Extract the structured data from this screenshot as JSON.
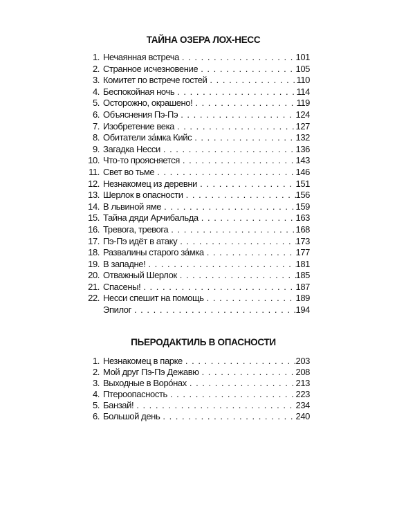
{
  "sections": [
    {
      "title": "ТАЙНА ОЗЕРА ЛОХ-НЕСС",
      "entries": [
        {
          "num": "1.",
          "title": "Нечаянная встреча",
          "page": "101"
        },
        {
          "num": "2.",
          "title": "Странное исчезновение",
          "page": "105"
        },
        {
          "num": "3.",
          "title": "Комитет по встрече гостей",
          "page": "110"
        },
        {
          "num": "4.",
          "title": "Беспокойная ночь",
          "page": "114"
        },
        {
          "num": "5.",
          "title": "Осторожно, окрашено!",
          "page": "119"
        },
        {
          "num": "6.",
          "title": "Объяснения Пэ-Пэ",
          "page": "124"
        },
        {
          "num": "7.",
          "title": "Изобретение века",
          "page": "127"
        },
        {
          "num": "8.",
          "title": "Обитатели за́мка Кийс",
          "page": "132"
        },
        {
          "num": "9.",
          "title": "Загадка Несси",
          "page": "136"
        },
        {
          "num": "10.",
          "title": "Что-то проясняется",
          "page": "143"
        },
        {
          "num": "11.",
          "title": "Свет во тьме",
          "page": "146"
        },
        {
          "num": "12.",
          "title": "Незнакомец из деревни",
          "page": "151"
        },
        {
          "num": "13.",
          "title": "Шерлок в опасности",
          "page": "156"
        },
        {
          "num": "14.",
          "title": "В львиной яме",
          "page": "159"
        },
        {
          "num": "15.",
          "title": "Тайна дяди Арчибальда",
          "page": "163"
        },
        {
          "num": "16.",
          "title": "Тревога, тревога",
          "page": "168"
        },
        {
          "num": "17.",
          "title": "Пэ-Пэ идёт в атаку",
          "page": "173"
        },
        {
          "num": "18.",
          "title": "Развалины старого за́мка",
          "page": "177"
        },
        {
          "num": "19.",
          "title": "В западне!",
          "page": "181"
        },
        {
          "num": "20.",
          "title": "Отважный Шерлок",
          "page": "185"
        },
        {
          "num": "21.",
          "title": "Спасены!",
          "page": "187"
        },
        {
          "num": "22.",
          "title": "Несси спешит на помощь",
          "page": "189"
        },
        {
          "num": "",
          "title": "Эпилог",
          "page": "194"
        }
      ]
    },
    {
      "title": "ПЬЕРОДАКТИЛЬ В ОПАСНОСТИ",
      "entries": [
        {
          "num": "1.",
          "title": "Незнакомец в парке",
          "page": "203"
        },
        {
          "num": "2.",
          "title": "Мой друг Пэ-Пэ Дежавю",
          "page": "208"
        },
        {
          "num": "3.",
          "title": "Выходные в Воро́нах",
          "page": "213"
        },
        {
          "num": "4.",
          "title": "Птероопасность",
          "page": "223"
        },
        {
          "num": "5.",
          "title": "Банзай!",
          "page": "234"
        },
        {
          "num": "6.",
          "title": "Большой день",
          "page": "240"
        }
      ]
    }
  ]
}
